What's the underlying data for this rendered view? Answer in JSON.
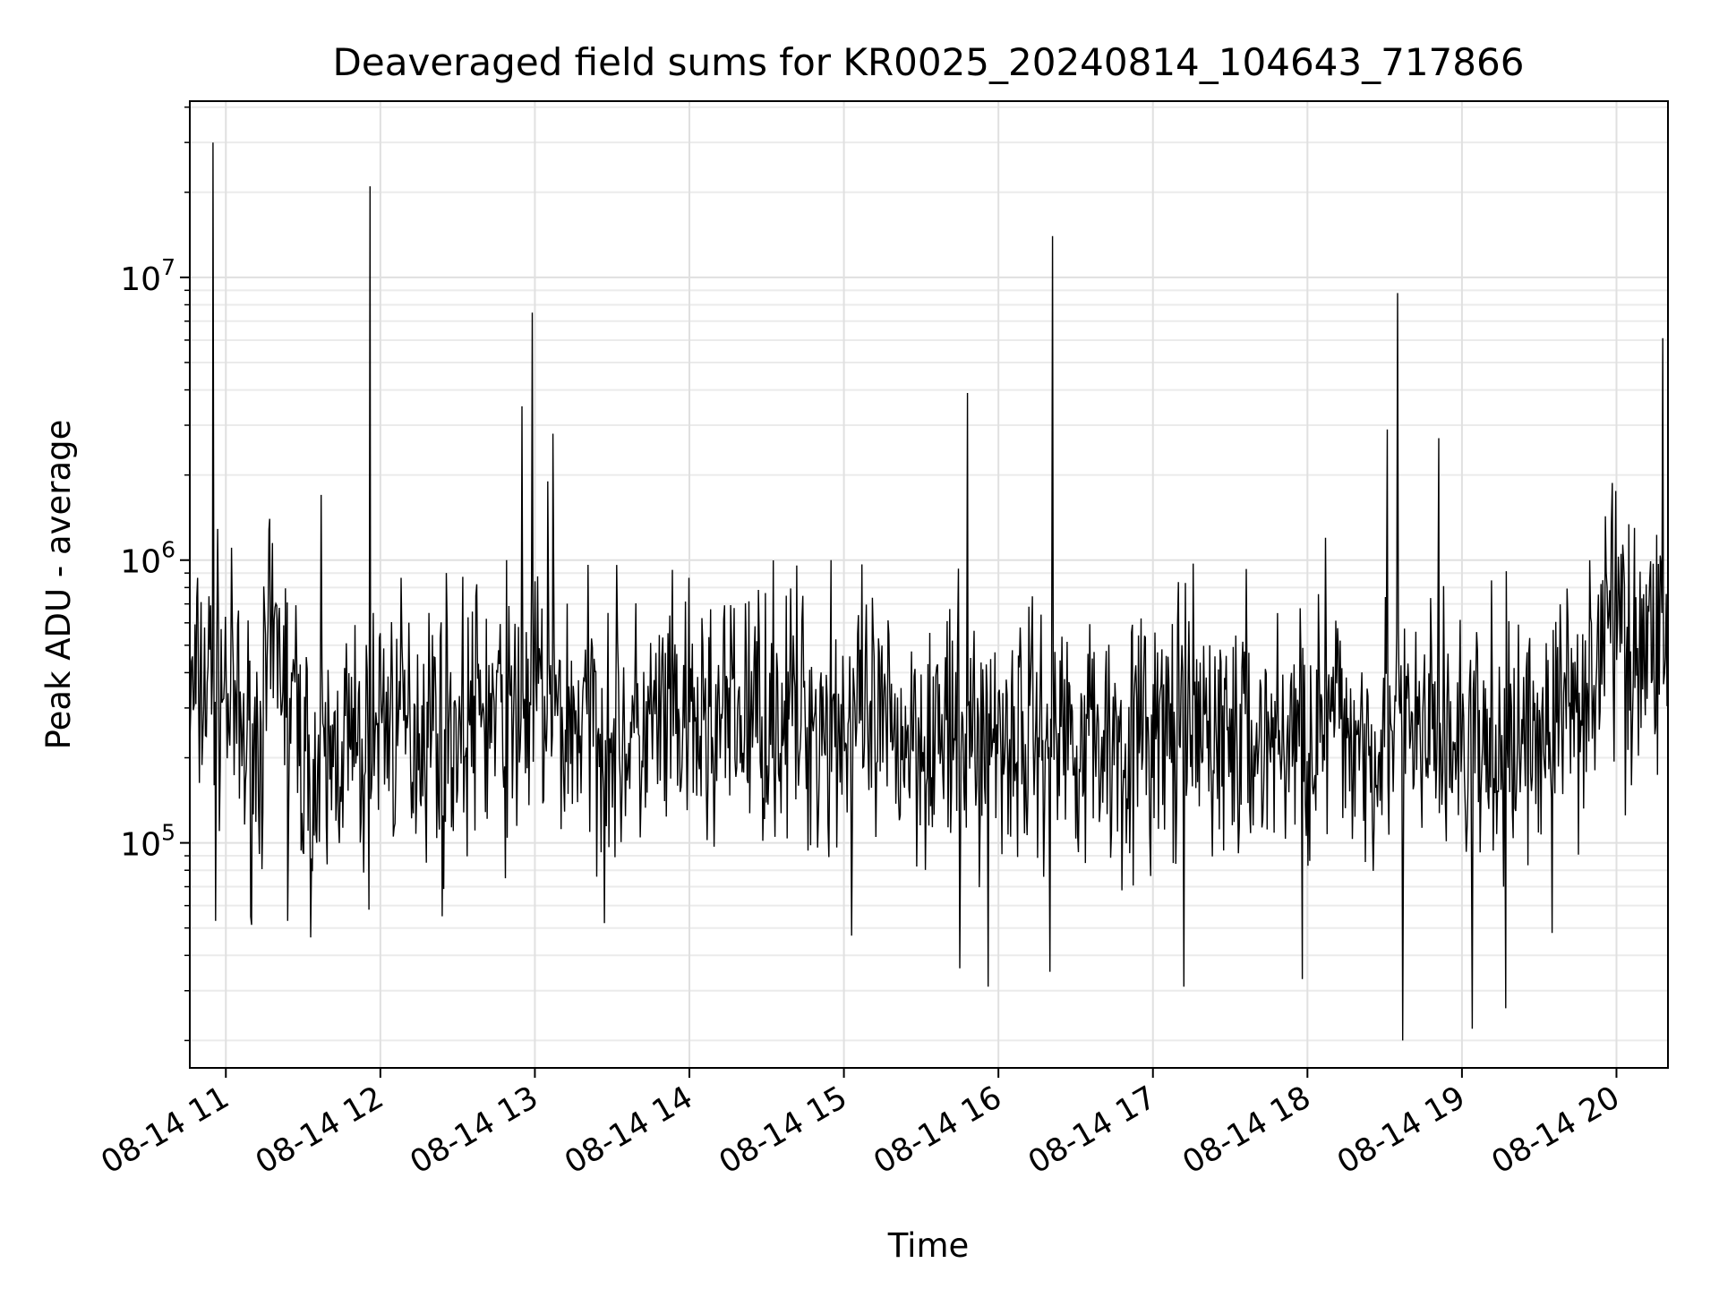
{
  "chart_data": {
    "type": "line",
    "title": "Deaveraged field sums for KR0025_20240814_104643_717866",
    "xlabel": "Time",
    "ylabel": "Peak ADU - average",
    "y_scale": "log",
    "ylim": [
      16000,
      42000000
    ],
    "xlim": [
      "2024-08-14T10:46",
      "2024-08-14T20:20"
    ],
    "grid": true,
    "line_color": "#000000",
    "x_ticks": [
      {
        "t": "2024-08-14T11:00",
        "label": "08-14 11"
      },
      {
        "t": "2024-08-14T12:00",
        "label": "08-14 12"
      },
      {
        "t": "2024-08-14T13:00",
        "label": "08-14 13"
      },
      {
        "t": "2024-08-14T14:00",
        "label": "08-14 14"
      },
      {
        "t": "2024-08-14T15:00",
        "label": "08-14 15"
      },
      {
        "t": "2024-08-14T16:00",
        "label": "08-14 16"
      },
      {
        "t": "2024-08-14T17:00",
        "label": "08-14 17"
      },
      {
        "t": "2024-08-14T18:00",
        "label": "08-14 18"
      },
      {
        "t": "2024-08-14T19:00",
        "label": "08-14 19"
      },
      {
        "t": "2024-08-14T20:00",
        "label": "08-14 20"
      }
    ],
    "y_ticks": [
      {
        "value": 100000,
        "base": "10",
        "exp": "5"
      },
      {
        "value": 1000000,
        "base": "10",
        "exp": "6"
      },
      {
        "value": 10000000,
        "base": "10",
        "exp": "7"
      }
    ],
    "series": [
      {
        "x": [
          "2024-08-14T10:46",
          "2024-08-14T10:50",
          "2024-08-14T10:55",
          "2024-08-14T11:00",
          "2024-08-14T11:05",
          "2024-08-14T11:10",
          "2024-08-14T11:15",
          "2024-08-14T11:20",
          "2024-08-14T11:25",
          "2024-08-14T11:30",
          "2024-08-14T11:35",
          "2024-08-14T11:40",
          "2024-08-14T11:45",
          "2024-08-14T11:50",
          "2024-08-14T11:55",
          "2024-08-14T12:00",
          "2024-08-14T12:10",
          "2024-08-14T12:20",
          "2024-08-14T12:30",
          "2024-08-14T12:40",
          "2024-08-14T12:50",
          "2024-08-14T12:55",
          "2024-08-14T13:00",
          "2024-08-14T13:05",
          "2024-08-14T13:10",
          "2024-08-14T13:20",
          "2024-08-14T13:30",
          "2024-08-14T13:40",
          "2024-08-14T13:50",
          "2024-08-14T14:00",
          "2024-08-14T14:15",
          "2024-08-14T14:30",
          "2024-08-14T14:45",
          "2024-08-14T14:55",
          "2024-08-14T15:00",
          "2024-08-14T15:15",
          "2024-08-14T15:30",
          "2024-08-14T15:45",
          "2024-08-14T15:50",
          "2024-08-14T16:00",
          "2024-08-14T16:10",
          "2024-08-14T16:20",
          "2024-08-14T16:30",
          "2024-08-14T16:45",
          "2024-08-14T17:00",
          "2024-08-14T17:15",
          "2024-08-14T17:30",
          "2024-08-14T17:45",
          "2024-08-14T18:00",
          "2024-08-14T18:10",
          "2024-08-14T18:20",
          "2024-08-14T18:35",
          "2024-08-14T18:40",
          "2024-08-14T18:50",
          "2024-08-14T19:00",
          "2024-08-14T19:10",
          "2024-08-14T19:20",
          "2024-08-14T19:30",
          "2024-08-14T19:40",
          "2024-08-14T19:50",
          "2024-08-14T19:55",
          "2024-08-14T20:00",
          "2024-08-14T20:05",
          "2024-08-14T20:10",
          "2024-08-14T20:15",
          "2024-08-14T20:20"
        ],
        "y": [
          300000,
          350000,
          400000,
          350000,
          250000,
          200000,
          300000,
          500000,
          350000,
          200000,
          150000,
          180000,
          250000,
          200000,
          180000,
          300000,
          250000,
          280000,
          250000,
          300000,
          250000,
          280000,
          350000,
          300000,
          260000,
          280000,
          250000,
          230000,
          260000,
          250000,
          270000,
          300000,
          280000,
          260000,
          280000,
          230000,
          260000,
          220000,
          230000,
          250000,
          240000,
          260000,
          250000,
          230000,
          240000,
          250000,
          240000,
          230000,
          250000,
          260000,
          240000,
          250000,
          230000,
          240000,
          220000,
          200000,
          230000,
          250000,
          300000,
          400000,
          550000,
          600000,
          500000,
          450000,
          550000,
          600000
        ]
      }
    ],
    "spikes": [
      {
        "t": "2024-08-14T10:55",
        "y": 30000000
      },
      {
        "t": "2024-08-14T11:56",
        "y": 21000000
      },
      {
        "t": "2024-08-14T12:59",
        "y": 7500000
      },
      {
        "t": "2024-08-14T12:55",
        "y": 3500000
      },
      {
        "t": "2024-08-14T13:07",
        "y": 2800000
      },
      {
        "t": "2024-08-14T13:05",
        "y": 1900000
      },
      {
        "t": "2024-08-14T11:17",
        "y": 1400000
      },
      {
        "t": "2024-08-14T11:37",
        "y": 1700000
      },
      {
        "t": "2024-08-14T12:49",
        "y": 1000000
      },
      {
        "t": "2024-08-14T14:55",
        "y": 1000000
      },
      {
        "t": "2024-08-14T15:48",
        "y": 3900000
      },
      {
        "t": "2024-08-14T16:21",
        "y": 14000000
      },
      {
        "t": "2024-08-14T18:07",
        "y": 1200000
      },
      {
        "t": "2024-08-14T18:31",
        "y": 2900000
      },
      {
        "t": "2024-08-14T18:35",
        "y": 8800000
      },
      {
        "t": "2024-08-14T18:51",
        "y": 2700000
      },
      {
        "t": "2024-08-14T20:18",
        "y": 6100000
      },
      {
        "t": "2024-08-14T19:58",
        "y": 1300000
      },
      {
        "t": "2024-08-14T20:07",
        "y": 1300000
      }
    ],
    "dips": [
      {
        "t": "2024-08-14T10:56",
        "y": 53000
      },
      {
        "t": "2024-08-14T11:24",
        "y": 53000
      },
      {
        "t": "2024-08-14T12:24",
        "y": 55000
      },
      {
        "t": "2024-08-14T13:27",
        "y": 52000
      },
      {
        "t": "2024-08-14T15:03",
        "y": 47000
      },
      {
        "t": "2024-08-14T15:45",
        "y": 36000
      },
      {
        "t": "2024-08-14T15:56",
        "y": 31000
      },
      {
        "t": "2024-08-14T16:20",
        "y": 35000
      },
      {
        "t": "2024-08-14T17:12",
        "y": 31000
      },
      {
        "t": "2024-08-14T17:58",
        "y": 33000
      },
      {
        "t": "2024-08-14T18:37",
        "y": 20000
      },
      {
        "t": "2024-08-14T19:04",
        "y": 22000
      },
      {
        "t": "2024-08-14T19:17",
        "y": 26000
      },
      {
        "t": "2024-08-14T19:35",
        "y": 48000
      }
    ]
  }
}
